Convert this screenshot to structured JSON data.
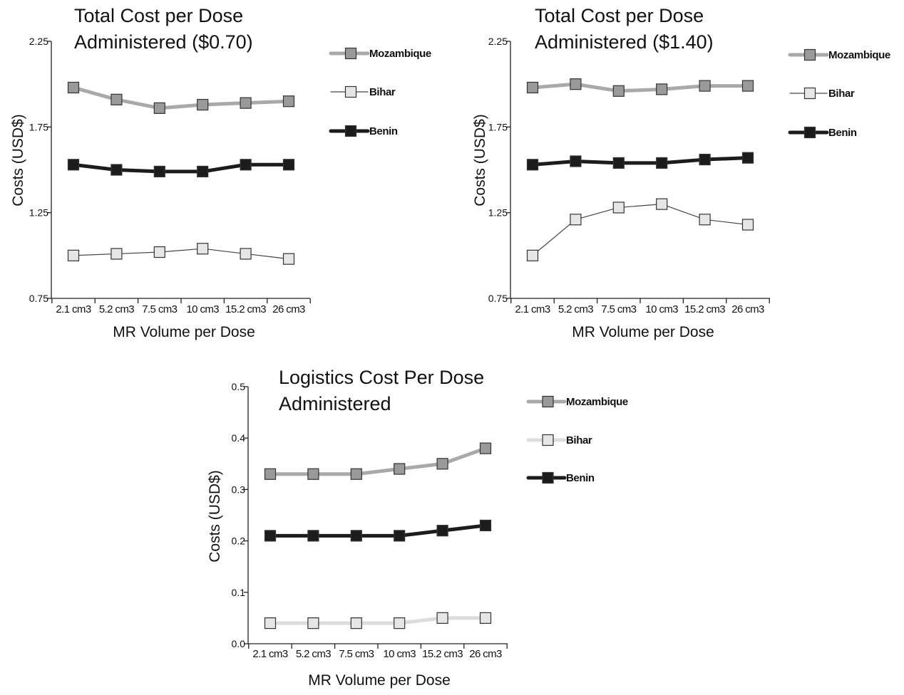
{
  "charts": [
    {
      "title_lines": [
        "Total Cost per Dose",
        "Administered ($0.70)"
      ],
      "legend": [
        "Mozambique",
        "Bihar",
        "Benin"
      ]
    },
    {
      "title_lines": [
        "Total Cost per Dose",
        "Administered ($1.40)"
      ],
      "legend": [
        "Mozambique",
        "Bihar",
        "Benin"
      ]
    },
    {
      "title_lines": [
        "Logistics Cost Per Dose",
        "Administered"
      ],
      "legend": [
        "Mozambique",
        "Bihar",
        "Benin"
      ]
    }
  ],
  "colors": {
    "mozambique_line": "#a9a9a9",
    "mozambique_marker": "#9a9a9a",
    "bihar_marker": "#e6e6e6",
    "benin": "#1c1c1c",
    "axis": "#222222"
  },
  "chart_data": [
    {
      "type": "line",
      "title": "Total Cost per Dose Administered ($0.70)",
      "xlabel": "MR Volume per Dose",
      "ylabel": "Costs (USD$)",
      "categories": [
        "2.1 cm3",
        "5.2 cm3",
        "7.5 cm3",
        "10 cm3",
        "15.2 cm3",
        "26 cm3"
      ],
      "ylim": [
        0.75,
        2.25
      ],
      "yticks": [
        0.75,
        1.25,
        1.75,
        2.25
      ],
      "ytick_labels": [
        "0.75",
        "1.25",
        "1.75",
        "2.25"
      ],
      "legend_position": "right",
      "series": [
        {
          "name": "Mozambique",
          "values": [
            1.98,
            1.91,
            1.86,
            1.88,
            1.89,
            1.9
          ]
        },
        {
          "name": "Bihar",
          "values": [
            1.0,
            1.01,
            1.02,
            1.04,
            1.01,
            0.98
          ]
        },
        {
          "name": "Benin",
          "values": [
            1.53,
            1.5,
            1.49,
            1.49,
            1.53,
            1.53
          ]
        }
      ]
    },
    {
      "type": "line",
      "title": "Total Cost per Dose Administered ($1.40)",
      "xlabel": "MR Volume per Dose",
      "ylabel": "Costs (USD$)",
      "categories": [
        "2.1 cm3",
        "5.2 cm3",
        "7.5 cm3",
        "10 cm3",
        "15.2 cm3",
        "26 cm3"
      ],
      "ylim": [
        0.75,
        2.25
      ],
      "yticks": [
        0.75,
        1.25,
        1.75,
        2.25
      ],
      "ytick_labels": [
        "0.75",
        "1.25",
        "1.75",
        "2.25"
      ],
      "legend_position": "right",
      "series": [
        {
          "name": "Mozambique",
          "values": [
            1.98,
            2.0,
            1.96,
            1.97,
            1.99,
            1.99
          ]
        },
        {
          "name": "Bihar",
          "values": [
            1.0,
            1.21,
            1.28,
            1.3,
            1.21,
            1.18
          ]
        },
        {
          "name": "Benin",
          "values": [
            1.53,
            1.55,
            1.54,
            1.54,
            1.56,
            1.57
          ]
        }
      ]
    },
    {
      "type": "line",
      "title": "Logistics Cost Per Dose Administered",
      "xlabel": "MR Volume per Dose",
      "ylabel": "Costs (USD$)",
      "categories": [
        "2.1 cm3",
        "5.2 cm3",
        "7.5 cm3",
        "10 cm3",
        "15.2 cm3",
        "26 cm3"
      ],
      "ylim": [
        0,
        0.5
      ],
      "yticks": [
        0,
        0.1,
        0.2,
        0.3,
        0.4,
        0.5
      ],
      "ytick_labels": [
        "0.0",
        "0.1",
        "0.2",
        "0.3",
        "0.4",
        "0.5"
      ],
      "legend_position": "right",
      "series": [
        {
          "name": "Mozambique",
          "values": [
            0.33,
            0.33,
            0.33,
            0.34,
            0.35,
            0.38
          ]
        },
        {
          "name": "Bihar",
          "values": [
            0.04,
            0.04,
            0.04,
            0.04,
            0.05,
            0.05
          ]
        },
        {
          "name": "Benin",
          "values": [
            0.21,
            0.21,
            0.21,
            0.21,
            0.22,
            0.23
          ]
        }
      ]
    }
  ]
}
